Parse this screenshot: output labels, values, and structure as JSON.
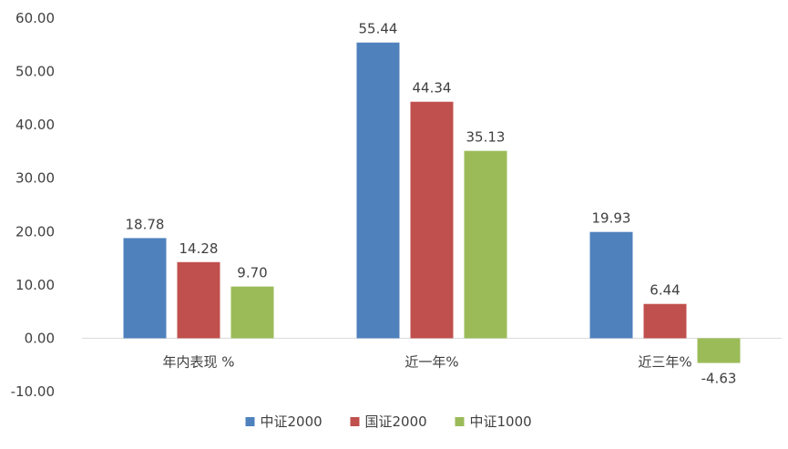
{
  "chart_data": {
    "type": "bar",
    "categories": [
      "年内表现 %",
      "近一年%",
      "近三年%"
    ],
    "series": [
      {
        "name": "中证2000",
        "values": [
          18.78,
          55.44,
          19.93
        ],
        "labels": [
          "18.78",
          "55.44",
          "19.93"
        ],
        "color": "#4F81BD"
      },
      {
        "name": "国证2000",
        "values": [
          14.28,
          44.34,
          6.44
        ],
        "labels": [
          "14.28",
          "44.34",
          "6.44"
        ],
        "color": "#C0504D"
      },
      {
        "name": "中证1000",
        "values": [
          9.7,
          35.13,
          -4.63
        ],
        "labels": [
          "9.70",
          "35.13",
          "-4.63"
        ],
        "color": "#9BBB59"
      }
    ],
    "ylim": [
      -10,
      60
    ],
    "yticks": [
      "60.00",
      "50.00",
      "40.00",
      "30.00",
      "20.00",
      "10.00",
      "0.00",
      "-10.00"
    ],
    "grid": false,
    "legend": "bottom"
  }
}
